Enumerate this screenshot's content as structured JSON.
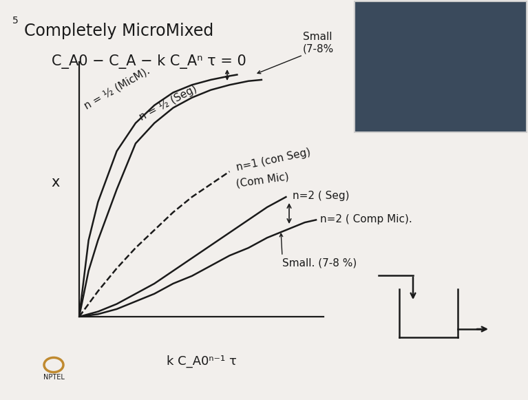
{
  "chart_data": {
    "type": "line",
    "title": "Completely MicroMixed",
    "subtitle": "C_A0 − C_A − k C_Aⁿ τ = 0",
    "x_label": "k C_A0ⁿ⁻¹ τ",
    "y_label": "x",
    "xlim": [
      0,
      13
    ],
    "ylim": [
      0,
      1
    ],
    "xticks": [],
    "yticks": [],
    "tick_labels": false,
    "grid": false,
    "color": "#1a1a1a",
    "series": [
      {
        "x": [
          0,
          0.5,
          1,
          2,
          3,
          4,
          5,
          6,
          7,
          8,
          8.4
        ],
        "values": [
          0,
          0.3,
          0.45,
          0.65,
          0.76,
          0.83,
          0.88,
          0.91,
          0.93,
          0.945,
          0.95
        ],
        "line_style": "solid"
      },
      {
        "x": [
          0,
          0.5,
          1,
          2,
          3,
          4,
          5,
          6,
          7,
          8,
          9,
          9.7
        ],
        "values": [
          0,
          0.18,
          0.3,
          0.5,
          0.68,
          0.76,
          0.82,
          0.86,
          0.89,
          0.91,
          0.925,
          0.93
        ],
        "line_style": "solid"
      },
      {
        "x": [
          0,
          1,
          2,
          3,
          4,
          5,
          6,
          7,
          8
        ],
        "values": [
          0,
          0.1,
          0.19,
          0.27,
          0.34,
          0.41,
          0.47,
          0.52,
          0.57
        ],
        "line_style": "dashed"
      },
      {
        "x": [
          0,
          1,
          2,
          3,
          4,
          5,
          6,
          7,
          8,
          9,
          10,
          11
        ],
        "values": [
          0,
          0.02,
          0.05,
          0.09,
          0.13,
          0.18,
          0.23,
          0.28,
          0.33,
          0.38,
          0.43,
          0.47
        ],
        "line_style": "solid"
      },
      {
        "x": [
          0,
          1,
          2,
          3,
          4,
          5,
          6,
          7,
          8,
          9,
          10,
          11,
          12,
          12.6
        ],
        "values": [
          0,
          0.01,
          0.03,
          0.06,
          0.09,
          0.13,
          0.16,
          0.2,
          0.24,
          0.27,
          0.31,
          0.34,
          0.37,
          0.38
        ],
        "line_style": "solid"
      }
    ],
    "annotations": [
      {
        "text": "n = ½ (MicM)."
      },
      {
        "text": "n = ½ (Seg)"
      },
      {
        "text": "n=1 (con Seg)"
      },
      {
        "text": "(Com Mic)"
      },
      {
        "text": "n=2 ( Seg)"
      },
      {
        "text": "n=2 ( Comp Mic)."
      },
      {
        "text": "Small\n(7-8%"
      },
      {
        "text": "Small. (7-8 %)"
      },
      {
        "text": "NPTEL"
      },
      {
        "text": "5"
      }
    ]
  }
}
